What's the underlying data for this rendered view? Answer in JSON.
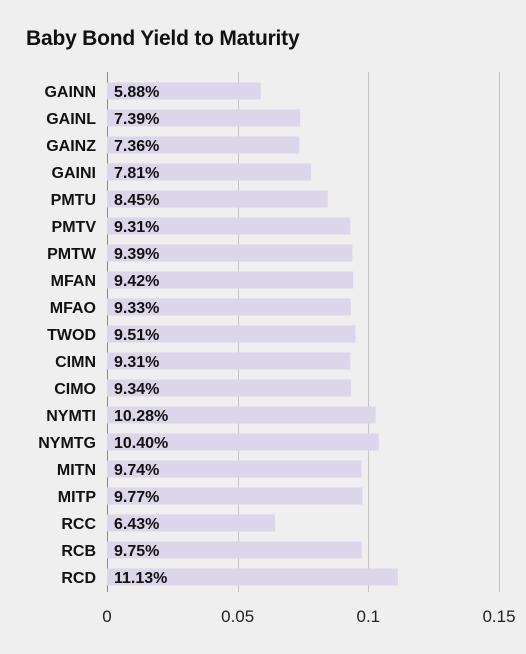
{
  "chart_data": {
    "type": "bar",
    "orientation": "horizontal",
    "title": "Baby Bond Yield to Maturity",
    "xlabel": "",
    "ylabel": "",
    "categories": [
      "GAINN",
      "GAINL",
      "GAINZ",
      "GAINI",
      "PMTU",
      "PMTV",
      "PMTW",
      "MFAN",
      "MFAO",
      "TWOD",
      "CIMN",
      "CIMO",
      "NYMTI",
      "NYMTG",
      "MITN",
      "MITP",
      "RCC",
      "RCB",
      "RCD"
    ],
    "values": [
      0.0588,
      0.0739,
      0.0736,
      0.0781,
      0.0845,
      0.0931,
      0.0939,
      0.0942,
      0.0933,
      0.0951,
      0.0931,
      0.0934,
      0.1028,
      0.104,
      0.0974,
      0.0977,
      0.0643,
      0.0975,
      0.1113
    ],
    "data_labels": [
      "5.88%",
      "7.39%",
      "7.36%",
      "7.81%",
      "8.45%",
      "9.31%",
      "9.39%",
      "9.42%",
      "9.33%",
      "9.51%",
      "9.31%",
      "9.34%",
      "10.28%",
      "10.40%",
      "9.74%",
      "9.77%",
      "6.43%",
      "9.75%",
      "11.13%"
    ],
    "xlim": [
      0,
      0.15
    ],
    "x_ticks": [
      0,
      0.05,
      0.1,
      0.15
    ],
    "x_tick_labels": [
      "0",
      "0.05",
      "0.1",
      "0.15"
    ],
    "grid": "vertical",
    "legend": "none",
    "colors": {
      "bar": "#dcd6ea",
      "grid": "#c4c4c4",
      "background": "#efefef",
      "text": "#111111"
    }
  }
}
